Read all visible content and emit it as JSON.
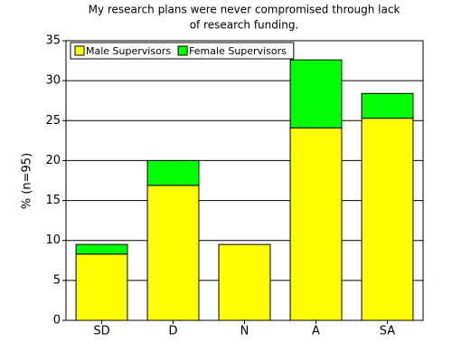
{
  "chart_data": {
    "type": "stacked_bar",
    "title": [
      "My research plans were never compromised through lack",
      "of research funding."
    ],
    "y_label": "% (n=95)",
    "categories": [
      "SD",
      "D",
      "N",
      "A",
      "SA"
    ],
    "series": [
      {
        "name": "Male Supervisors",
        "color": "#ffff00",
        "values": [
          8.3,
          16.9,
          9.5,
          24.1,
          25.3
        ]
      },
      {
        "name": "Female Supervisors",
        "color": "#00ff00",
        "values": [
          1.2,
          3.1,
          0,
          8.5,
          3.1
        ]
      }
    ],
    "ylim": [
      0,
      35
    ],
    "yticks": [
      0,
      5,
      10,
      15,
      20,
      25,
      30,
      35
    ],
    "grid": true,
    "legend": "top-left"
  }
}
